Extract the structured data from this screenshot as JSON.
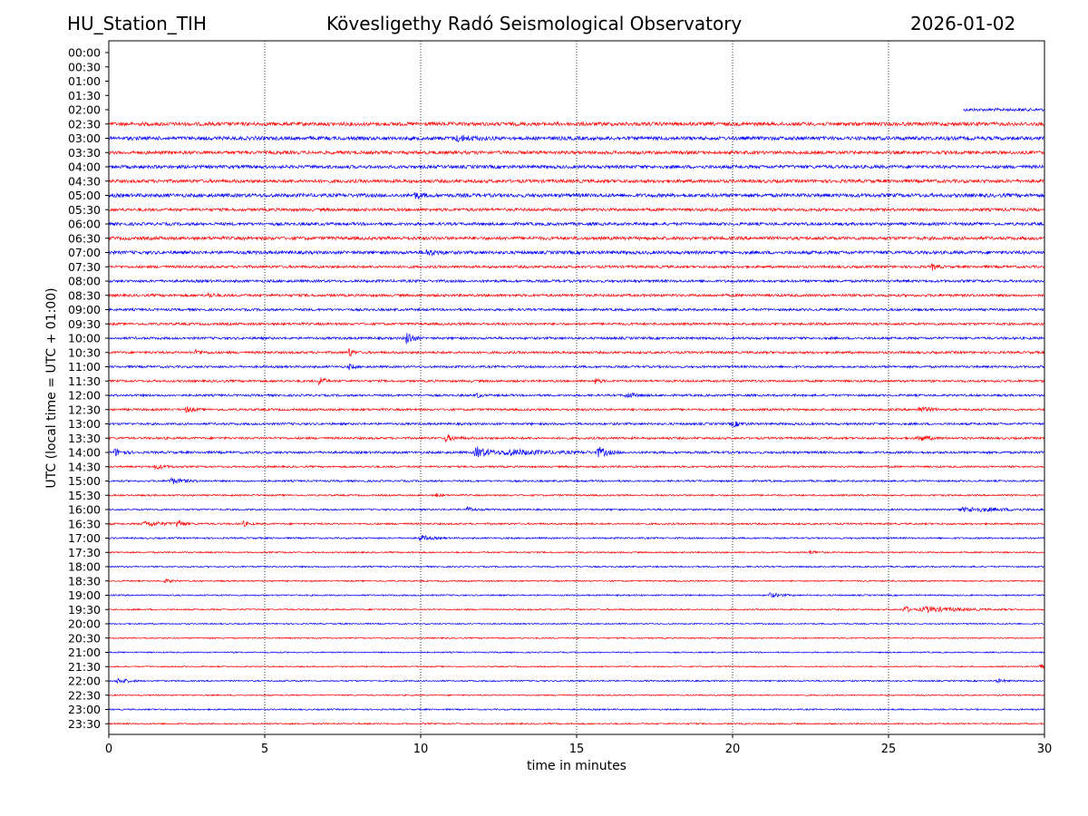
{
  "header": {
    "station": "HU_Station_TIH",
    "observatory": "Kövesligethy Radó Seismological Observatory",
    "date": "2026-01-02"
  },
  "chart_data": {
    "type": "line",
    "xlabel": "time in minutes",
    "ylabel": "UTC (local time = UTC + 01:00)",
    "xlim": [
      0,
      30
    ],
    "x_ticks": [
      "0",
      "5",
      "10",
      "15",
      "20",
      "25",
      "30"
    ],
    "vertical_grid_minutes": [
      5,
      10,
      15,
      20,
      25
    ],
    "grid_style": "dotted",
    "series_colors": [
      "#ff0000",
      "#0000ff"
    ],
    "rows": [
      {
        "label": "00:00",
        "color": "#0000ff",
        "start": null,
        "amp": 0,
        "events": []
      },
      {
        "label": "00:30",
        "color": "#ff0000",
        "start": null,
        "amp": 0,
        "events": []
      },
      {
        "label": "01:00",
        "color": "#0000ff",
        "start": null,
        "amp": 0,
        "events": []
      },
      {
        "label": "01:30",
        "color": "#ff0000",
        "start": null,
        "amp": 0,
        "events": []
      },
      {
        "label": "02:00",
        "color": "#0000ff",
        "start": 27.4,
        "amp": 1.6,
        "events": []
      },
      {
        "label": "02:30",
        "color": "#ff0000",
        "start": 0,
        "amp": 2.0,
        "events": []
      },
      {
        "label": "03:00",
        "color": "#0000ff",
        "start": 0,
        "amp": 2.0,
        "events": [
          [
            11.2,
            3,
            0.4
          ]
        ]
      },
      {
        "label": "03:30",
        "color": "#ff0000",
        "start": 0,
        "amp": 1.8,
        "events": []
      },
      {
        "label": "04:00",
        "color": "#0000ff",
        "start": 0,
        "amp": 1.8,
        "events": []
      },
      {
        "label": "04:30",
        "color": "#ff0000",
        "start": 0,
        "amp": 1.8,
        "events": []
      },
      {
        "label": "05:00",
        "color": "#0000ff",
        "start": 0,
        "amp": 2.0,
        "events": [
          [
            9.8,
            3,
            0.2
          ]
        ]
      },
      {
        "label": "05:30",
        "color": "#ff0000",
        "start": 0,
        "amp": 1.6,
        "events": []
      },
      {
        "label": "06:00",
        "color": "#0000ff",
        "start": 0,
        "amp": 1.6,
        "events": []
      },
      {
        "label": "06:30",
        "color": "#ff0000",
        "start": 0,
        "amp": 1.8,
        "events": []
      },
      {
        "label": "07:00",
        "color": "#0000ff",
        "start": 0,
        "amp": 1.8,
        "events": [
          [
            10.2,
            3,
            0.3
          ]
        ]
      },
      {
        "label": "07:30",
        "color": "#ff0000",
        "start": 0,
        "amp": 1.4,
        "events": [
          [
            26.4,
            3,
            0.15
          ]
        ]
      },
      {
        "label": "08:00",
        "color": "#0000ff",
        "start": 0,
        "amp": 1.4,
        "events": []
      },
      {
        "label": "08:30",
        "color": "#ff0000",
        "start": 0,
        "amp": 1.4,
        "events": [
          [
            3.2,
            3,
            0.15
          ]
        ]
      },
      {
        "label": "09:00",
        "color": "#0000ff",
        "start": 0,
        "amp": 1.3,
        "events": []
      },
      {
        "label": "09:30",
        "color": "#ff0000",
        "start": 0,
        "amp": 1.3,
        "events": []
      },
      {
        "label": "10:00",
        "color": "#0000ff",
        "start": 0,
        "amp": 1.3,
        "events": [
          [
            9.55,
            9,
            0.15
          ]
        ]
      },
      {
        "label": "10:30",
        "color": "#ff0000",
        "start": 0,
        "amp": 1.3,
        "events": [
          [
            7.7,
            5,
            0.12
          ],
          [
            2.8,
            2.5,
            0.2
          ]
        ]
      },
      {
        "label": "11:00",
        "color": "#0000ff",
        "start": 0,
        "amp": 1.2,
        "events": [
          [
            7.7,
            3,
            0.15
          ]
        ]
      },
      {
        "label": "11:30",
        "color": "#ff0000",
        "start": 0,
        "amp": 1.2,
        "events": [
          [
            6.75,
            7,
            0.12
          ],
          [
            15.6,
            3,
            0.12
          ]
        ]
      },
      {
        "label": "12:00",
        "color": "#0000ff",
        "start": 0,
        "amp": 1.2,
        "events": [
          [
            16.6,
            3,
            0.25
          ],
          [
            11.8,
            3,
            0.1
          ]
        ]
      },
      {
        "label": "12:30",
        "color": "#ff0000",
        "start": 0,
        "amp": 1.2,
        "events": [
          [
            2.5,
            3,
            0.2
          ],
          [
            26,
            3,
            0.3
          ]
        ]
      },
      {
        "label": "13:00",
        "color": "#0000ff",
        "start": 0,
        "amp": 1.2,
        "events": [
          [
            20,
            3,
            0.25
          ]
        ]
      },
      {
        "label": "13:30",
        "color": "#ff0000",
        "start": 0,
        "amp": 1.2,
        "events": [
          [
            10.8,
            3,
            0.3
          ],
          [
            26,
            3,
            0.3
          ]
        ]
      },
      {
        "label": "14:00",
        "color": "#0000ff",
        "start": 0,
        "amp": 1.3,
        "events": [
          [
            0.2,
            4,
            0.2
          ],
          [
            11.8,
            6,
            0.4
          ],
          [
            12.8,
            3,
            1.2
          ],
          [
            15.7,
            6,
            0.25
          ]
        ]
      },
      {
        "label": "14:30",
        "color": "#ff0000",
        "start": 0,
        "amp": 1.0,
        "events": [
          [
            1.5,
            2.5,
            0.3
          ]
        ]
      },
      {
        "label": "15:00",
        "color": "#0000ff",
        "start": 0,
        "amp": 1.0,
        "events": [
          [
            2,
            3,
            0.4
          ]
        ]
      },
      {
        "label": "15:30",
        "color": "#ff0000",
        "start": 0,
        "amp": 0.9,
        "events": [
          [
            10.5,
            3,
            0.1
          ]
        ]
      },
      {
        "label": "16:00",
        "color": "#0000ff",
        "start": 0,
        "amp": 0.9,
        "events": [
          [
            11.5,
            3,
            0.2
          ],
          [
            27.5,
            2.5,
            1.2
          ]
        ]
      },
      {
        "label": "16:30",
        "color": "#ff0000",
        "start": 0,
        "amp": 1.0,
        "events": [
          [
            2.2,
            6,
            0.15
          ],
          [
            1.2,
            2.5,
            0.6
          ],
          [
            4.3,
            3,
            0.15
          ]
        ]
      },
      {
        "label": "17:00",
        "color": "#0000ff",
        "start": 0,
        "amp": 0.9,
        "events": [
          [
            10,
            3,
            0.3
          ]
        ]
      },
      {
        "label": "17:30",
        "color": "#ff0000",
        "start": 0,
        "amp": 0.8,
        "events": [
          [
            22.5,
            2,
            0.2
          ]
        ]
      },
      {
        "label": "18:00",
        "color": "#0000ff",
        "start": 0,
        "amp": 0.8,
        "events": []
      },
      {
        "label": "18:30",
        "color": "#ff0000",
        "start": 0,
        "amp": 0.8,
        "events": [
          [
            1.8,
            2,
            0.2
          ]
        ]
      },
      {
        "label": "19:00",
        "color": "#0000ff",
        "start": 0,
        "amp": 0.8,
        "events": [
          [
            21.2,
            2.5,
            0.3
          ]
        ]
      },
      {
        "label": "19:30",
        "color": "#ff0000",
        "start": 0,
        "amp": 0.8,
        "events": [
          [
            25.5,
            5,
            0.15
          ],
          [
            26.2,
            3,
            1.0
          ]
        ]
      },
      {
        "label": "20:00",
        "color": "#0000ff",
        "start": 0,
        "amp": 0.7,
        "events": []
      },
      {
        "label": "20:30",
        "color": "#ff0000",
        "start": 0,
        "amp": 0.7,
        "events": []
      },
      {
        "label": "21:00",
        "color": "#0000ff",
        "start": 0,
        "amp": 0.7,
        "events": []
      },
      {
        "label": "21:30",
        "color": "#ff0000",
        "start": 0,
        "amp": 0.7,
        "events": [
          [
            29.85,
            6,
            0.12
          ]
        ]
      },
      {
        "label": "22:00",
        "color": "#0000ff",
        "start": 0,
        "amp": 0.8,
        "events": [
          [
            0.3,
            3,
            0.3
          ],
          [
            28.5,
            2,
            0.2
          ]
        ]
      },
      {
        "label": "22:30",
        "color": "#ff0000",
        "start": 0,
        "amp": 0.7,
        "events": []
      },
      {
        "label": "23:00",
        "color": "#0000ff",
        "start": 0,
        "amp": 0.8,
        "events": []
      },
      {
        "label": "23:30",
        "color": "#ff0000",
        "start": 0,
        "amp": 0.8,
        "events": []
      }
    ]
  }
}
